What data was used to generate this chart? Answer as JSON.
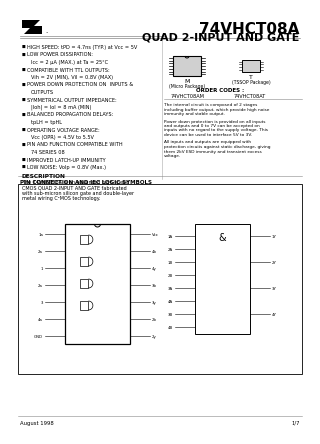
{
  "title": "74VHCT08A",
  "subtitle": "QUAD 2-INPUT AND GATE",
  "bg_color": "#ffffff",
  "features": [
    "HIGH SPEED: tPD = 4.7ns (TYP.) at Vcc = 5V",
    "LOW POWER DISSIPATION:",
    "  Icc = 2 μA (MAX.) at Ta = 25°C",
    "COMPATIBLE WITH TTL OUTPUTS:",
    "  Vih = 2V (MIN), Vil = 0.8V (MAX)",
    "POWER DOWN PROTECTION ON  INPUTS &",
    "  OUTPUTS",
    "SYMMETRICAL OUTPUT IMPEDANCE:",
    "  |Ioh| = Iol = 8 mA (MIN)",
    "BALANCED PROPAGATION DELAYS:",
    "  tpLH = tpHL",
    "OPERATING VOLTAGE RANGE:",
    "  Vcc (OPR) = 4.5V to 5.5V",
    "PIN AND FUNCTION COMPATIBLE WITH",
    "  74 SERIES 08",
    "IMPROVED LATCH-UP IMMUNITY",
    "LOW NOISE: Volp = 0.8V (Max.)"
  ],
  "description_title": "DESCRIPTION",
  "description_text": "The 74VHCT08A is an advanced high-speed\nCMOS QUAD 2-INPUT AND GATE fabricated\nwith sub-micron silicon gate and double-layer\nmetal wiring C²MOS technology.",
  "order_codes_title": "ORDER CODES :",
  "order_code_m": "74VHCT08AM",
  "order_code_t": "74VHCT08AT",
  "right_text": "The internal circuit is composed of 2 stages\nincluding buffer output, which provide high noise\nimmunity and stable output.\n\nPower down protection is provided on all inputs\nand outputs and 0 to 7V can be accepted on\ninputs with no regard to the supply voltage. This\ndevice can be used to interface 5V to 3V.\n\nAll inputs and outputs are equipped with\nprotection circuits against static discharge, giving\nthem 2kV ESD immunity and transient excess\nvoltage.",
  "pin_section_title": "PIN CONNECTION AND IEC LOGIC SYMBOLS",
  "footer_left": "August 1998",
  "footer_right": "1/7",
  "pin_left_labels": [
    "1a",
    "2a",
    "1",
    "2a",
    "3",
    "4a",
    "GND"
  ],
  "pin_right_labels": [
    "Vcc",
    "4b",
    "4y",
    "3b",
    "3y",
    "2b",
    "2y",
    "1b",
    "1y"
  ]
}
